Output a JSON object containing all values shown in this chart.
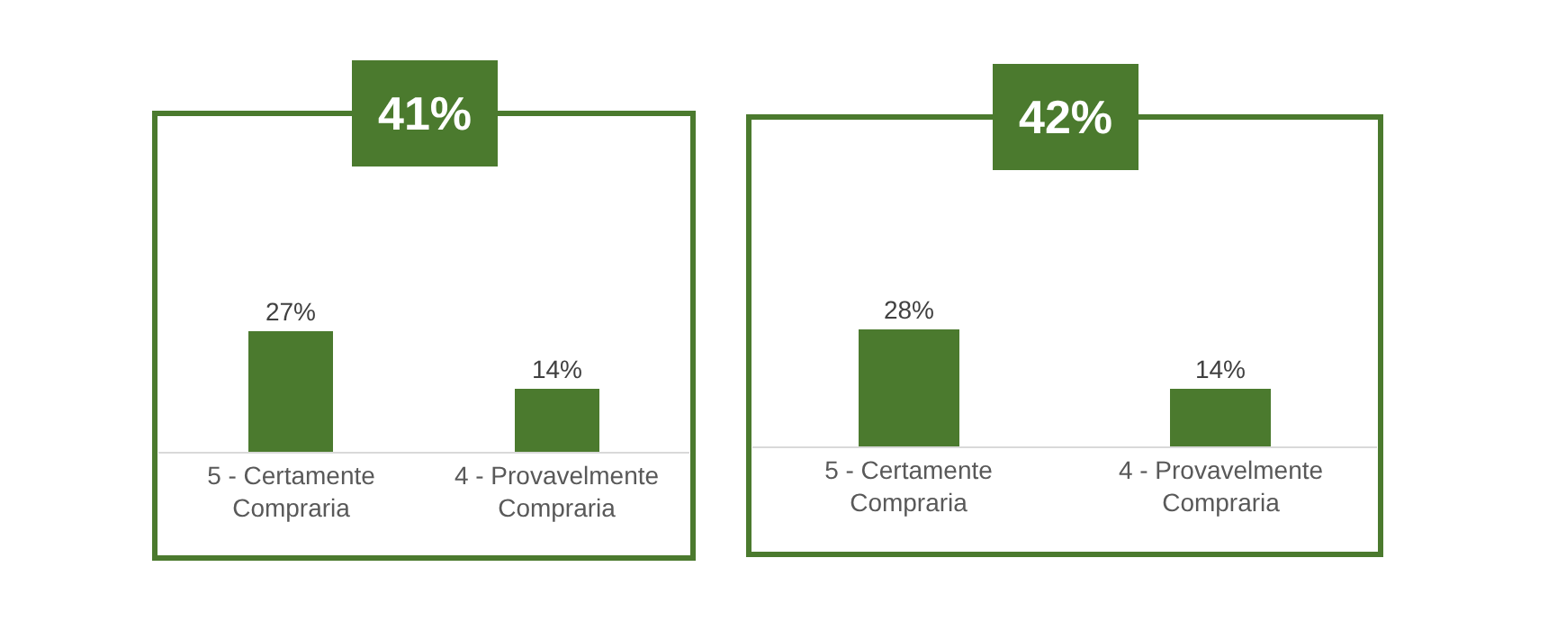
{
  "chart_data": [
    {
      "type": "bar",
      "title": "41%",
      "categories": [
        "5 - Certamente Compraria",
        "4 - Provavelmente Compraria"
      ],
      "values": [
        27,
        14
      ],
      "value_labels": [
        "27%",
        "14%"
      ],
      "color": "#4b7a2e"
    },
    {
      "type": "bar",
      "title": "42%",
      "categories": [
        "5 - Certamente Compraria",
        "4 - Provavelmente Compraria"
      ],
      "values": [
        28,
        14
      ],
      "value_labels": [
        "28%",
        "14%"
      ],
      "color": "#4b7a2e"
    }
  ]
}
